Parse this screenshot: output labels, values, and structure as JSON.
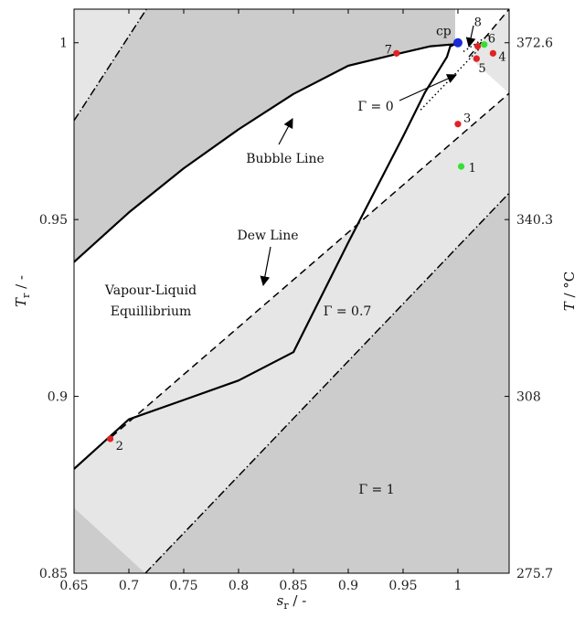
{
  "chart_data": {
    "type": "line",
    "title": "",
    "xlabel_main": "s",
    "xlabel_sub": "r",
    "xlabel_unit": " / -",
    "ylabel_main": "T",
    "ylabel_sub": "r",
    "ylabel_unit": " / -",
    "ylabel2_main": "T",
    "ylabel2_unit": " / °C",
    "xlim": [
      0.65,
      1.0467
    ],
    "ylim": [
      0.85,
      1.0095
    ],
    "grid": false,
    "x_ticks": [
      0.65,
      0.7,
      0.75,
      0.8,
      0.85,
      0.9,
      0.95,
      1
    ],
    "x_tick_labels": [
      "0.65",
      "0.7",
      "0.75",
      "0.8",
      "0.85",
      "0.9",
      "0.95",
      "1"
    ],
    "y_ticks": [
      0.85,
      0.9,
      0.95,
      1
    ],
    "y_tick_labels": [
      "0.85",
      "0.9",
      "0.95",
      "1"
    ],
    "y2_ticks": [
      0.85,
      0.9,
      0.95,
      1
    ],
    "y2_tick_labels": [
      "275.7",
      "308",
      "340.3",
      "372.6"
    ],
    "regions": [
      {
        "name": "gamma-1-lower",
        "color": "#cccccc"
      },
      {
        "name": "gamma-07-band",
        "color": "#e6e6e6"
      },
      {
        "name": "gamma-1-upper",
        "color": "#cccccc"
      },
      {
        "name": "top-left-corner",
        "color": "#e6e6e6"
      }
    ],
    "series": [
      {
        "name": "Bubble Line",
        "style": "solid",
        "x": [
          0.9975,
          0.975,
          0.94,
          0.9,
          0.85,
          0.8,
          0.75,
          0.7,
          0.65
        ],
        "y": [
          0.9996,
          0.999,
          0.9965,
          0.9935,
          0.9855,
          0.9755,
          0.9645,
          0.952,
          0.938
        ]
      },
      {
        "name": "Dew Line",
        "style": "solid",
        "x": [
          0.9975,
          0.993,
          0.99,
          0.983,
          0.97,
          0.95,
          0.9,
          0.85,
          0.8,
          0.75,
          0.7,
          0.65
        ],
        "y": [
          0.9996,
          0.999,
          0.996,
          0.9925,
          0.986,
          0.9735,
          0.9435,
          0.9125,
          0.9045,
          0.899,
          0.8935,
          0.8795
        ]
      }
    ],
    "guide_lines": [
      {
        "style": "dashed",
        "x": [
          0.684,
          1.0467
        ],
        "y": [
          0.8885,
          0.9857
        ]
      },
      {
        "style": "dashed",
        "x": [
          1.01,
          1.0467
        ],
        "y": [
          0.996,
          1.0095
        ]
      },
      {
        "style": "dotted",
        "x": [
          0.966,
          1.02
        ],
        "y": [
          0.981,
          0.9985
        ]
      },
      {
        "style": "dotted",
        "x": [
          1.005,
          1.03
        ],
        "y": [
          0.9975,
          1.0025
        ]
      },
      {
        "style": "dashdot",
        "x": [
          0.65,
          0.716
        ],
        "y": [
          0.978,
          1.0095
        ]
      },
      {
        "style": "dashdot",
        "x": [
          0.715,
          1.0467
        ],
        "y": [
          0.85,
          0.9575
        ]
      }
    ],
    "points": [
      {
        "label": "1",
        "x": 1.003,
        "y": 0.965,
        "color": "#33e033"
      },
      {
        "label": "2",
        "x": 0.683,
        "y": 0.888,
        "color": "#e22222"
      },
      {
        "label": "3",
        "x": 1.0,
        "y": 0.977,
        "color": "#e22222"
      },
      {
        "label": "4",
        "x": 1.032,
        "y": 0.997,
        "color": "#e22222"
      },
      {
        "label": "5",
        "x": 1.017,
        "y": 0.9955,
        "color": "#e22222"
      },
      {
        "label": "6",
        "x": 1.024,
        "y": 0.9995,
        "color": "#33e033"
      },
      {
        "label": "7",
        "x": 0.944,
        "y": 0.997,
        "color": "#e22222"
      },
      {
        "label": "8",
        "x": 1.018,
        "y": 0.999,
        "color": "#e22222"
      },
      {
        "label": "cp",
        "x": 1.0,
        "y": 1.0,
        "color": "#1a2bd6"
      }
    ],
    "annotations": [
      {
        "text": "Bubble Line"
      },
      {
        "text": "Dew Line"
      },
      {
        "text": "Vapour-Liquid"
      },
      {
        "text": "Equillibrium"
      },
      {
        "text": "Γ = 0"
      },
      {
        "text": "Γ = 0.7"
      },
      {
        "text": "Γ = 1"
      }
    ]
  }
}
